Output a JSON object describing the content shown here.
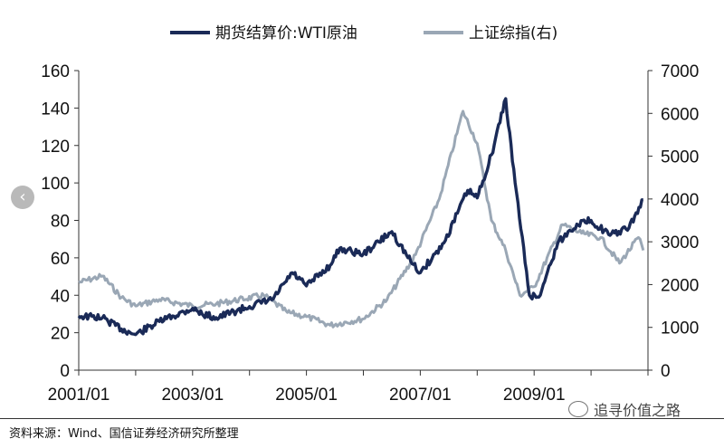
{
  "chart_data": {
    "type": "line",
    "x_ticks": [
      "2001/01",
      "2003/01",
      "2005/01",
      "2007/01",
      "2009/01"
    ],
    "y_left": {
      "ticks": [
        0,
        20,
        40,
        60,
        80,
        100,
        120,
        140,
        160
      ],
      "lim": [
        0,
        160
      ]
    },
    "y_right": {
      "ticks": [
        0,
        1000,
        2000,
        3000,
        4000,
        5000,
        6000,
        7000
      ],
      "lim": [
        0,
        7000
      ]
    },
    "x_range": [
      "2001/01",
      "2010/12"
    ],
    "series": [
      {
        "name": "期货结算价:WTI原油",
        "axis": "left",
        "color": "#1a2a57",
        "x": [
          "2001/01",
          "2001/06",
          "2001/10",
          "2002/01",
          "2002/06",
          "2003/01",
          "2003/03",
          "2003/06",
          "2004/01",
          "2004/06",
          "2004/10",
          "2005/01",
          "2005/06",
          "2005/08",
          "2006/01",
          "2006/07",
          "2006/11",
          "2007/01",
          "2007/06",
          "2007/11",
          "2008/01",
          "2008/04",
          "2008/07",
          "2008/09",
          "2008/12",
          "2009/02",
          "2009/06",
          "2009/10",
          "2010/01",
          "2010/05",
          "2010/09",
          "2010/12"
        ],
        "values": [
          29,
          28,
          22,
          19,
          26,
          33,
          30,
          28,
          34,
          38,
          52,
          45,
          56,
          65,
          62,
          74,
          58,
          52,
          68,
          96,
          92,
          115,
          145,
          100,
          40,
          39,
          68,
          78,
          80,
          72,
          76,
          91
        ]
      },
      {
        "name": "上证综指(右)",
        "axis": "right",
        "color": "#9aa7b5",
        "x": [
          "2001/01",
          "2001/06",
          "2001/10",
          "2002/01",
          "2002/06",
          "2003/01",
          "2003/06",
          "2004/04",
          "2004/09",
          "2005/01",
          "2005/06",
          "2006/01",
          "2006/06",
          "2006/12",
          "2007/05",
          "2007/10",
          "2008/01",
          "2008/04",
          "2008/07",
          "2008/10",
          "2009/01",
          "2009/07",
          "2009/11",
          "2010/03",
          "2010/07",
          "2010/11",
          "2010/12"
        ],
        "values": [
          2050,
          2200,
          1700,
          1500,
          1650,
          1500,
          1550,
          1750,
          1350,
          1250,
          1050,
          1200,
          1650,
          2700,
          4000,
          6050,
          5300,
          3500,
          2800,
          1750,
          1950,
          3400,
          3200,
          3100,
          2500,
          3100,
          2800
        ]
      }
    ]
  },
  "legend": {
    "s1": "期货结算价:WTI原油",
    "s2": "上证综指(右)"
  },
  "footer": {
    "source": "资料来源：Wind、国信证券经济研究所整理",
    "watermark": "追寻价值之路"
  },
  "nav": {
    "prev_icon": "chevron-left-icon",
    "prev_glyph": "‹"
  }
}
